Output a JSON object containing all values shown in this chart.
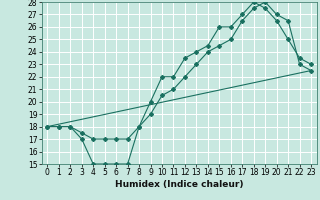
{
  "title": "",
  "xlabel": "Humidex (Indice chaleur)",
  "xlim": [
    -0.5,
    23.5
  ],
  "ylim": [
    15,
    28
  ],
  "xticks": [
    0,
    1,
    2,
    3,
    4,
    5,
    6,
    7,
    8,
    9,
    10,
    11,
    12,
    13,
    14,
    15,
    16,
    17,
    18,
    19,
    20,
    21,
    22,
    23
  ],
  "yticks": [
    15,
    16,
    17,
    18,
    19,
    20,
    21,
    22,
    23,
    24,
    25,
    26,
    27,
    28
  ],
  "bg_color": "#c8e8e0",
  "line_color": "#1a7060",
  "grid_color": "#ffffff",
  "line1_x": [
    0,
    1,
    2,
    3,
    4,
    5,
    6,
    7,
    8,
    9,
    10,
    11,
    12,
    13,
    14,
    15,
    16,
    17,
    18,
    19,
    20,
    21,
    22,
    23
  ],
  "line1_y": [
    18,
    18,
    18,
    17,
    15,
    15,
    15,
    15,
    18,
    20,
    22,
    22,
    23.5,
    24,
    24.5,
    26,
    26,
    27,
    28,
    27.5,
    26.5,
    25,
    23.5,
    23
  ],
  "line2_x": [
    0,
    1,
    2,
    3,
    4,
    5,
    6,
    7,
    8,
    9,
    10,
    11,
    12,
    13,
    14,
    15,
    16,
    17,
    18,
    19,
    20,
    21,
    22,
    23
  ],
  "line2_y": [
    18,
    18,
    18,
    17.5,
    17,
    17,
    17,
    17,
    18,
    19,
    20.5,
    21,
    22,
    23,
    24,
    24.5,
    25,
    26.5,
    27.5,
    28,
    27,
    26.5,
    23,
    22.5
  ],
  "line3_x": [
    0,
    23
  ],
  "line3_y": [
    18,
    22.5
  ],
  "tick_fontsize": 5.5,
  "xlabel_fontsize": 6.5
}
